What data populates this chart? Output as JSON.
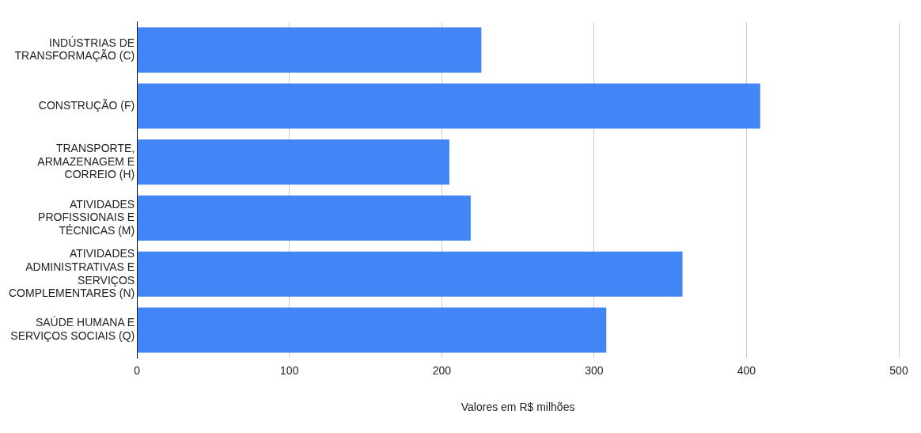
{
  "chart_data": {
    "type": "bar",
    "orientation": "horizontal",
    "categories": [
      "INDÚSTRIAS DE TRANSFORMAÇÃO (C)",
      "CONSTRUÇÃO (F)",
      "TRANSPORTE, ARMAZENAGEM E CORREIO (H)",
      "ATIVIDADES PROFISSIONAIS E TÉCNICAS (M)",
      "ATIVIDADES ADMINISTRATIVAS E SERVIÇOS COMPLEMENTARES (N)",
      "SAÚDE HUMANA E SERVIÇOS SOCIAIS (Q)"
    ],
    "values": [
      226,
      409,
      205,
      219,
      358,
      308
    ],
    "color": "#4285f4",
    "xlabel": "Valores em R$ milhões",
    "xlim": [
      0,
      500
    ],
    "xticks": [
      0,
      100,
      200,
      300,
      400,
      500
    ],
    "grid": "x",
    "legend": false
  }
}
